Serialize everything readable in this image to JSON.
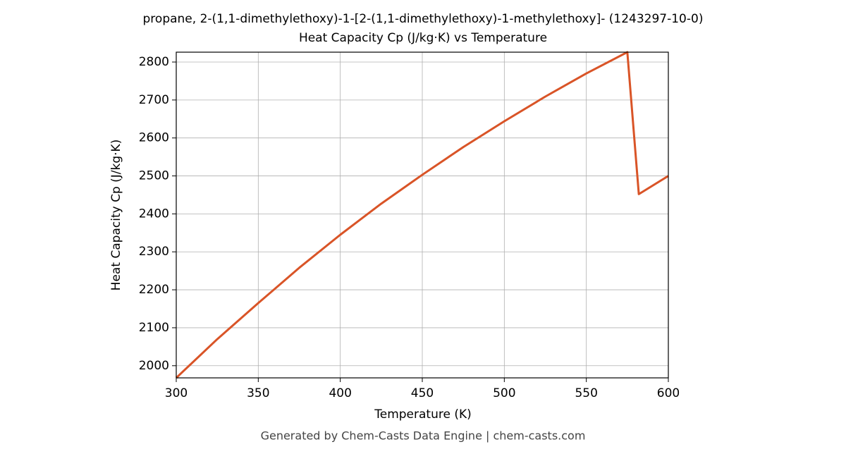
{
  "chart_data": {
    "type": "line",
    "title": "propane, 2-(1,1-dimethylethoxy)-1-[2-(1,1-dimethylethoxy)-1-methylethoxy]- (1243297-10-0)",
    "subtitle": "Heat Capacity Cp (J/kg·K) vs Temperature",
    "x_label": "Temperature (K)",
    "y_label": "Heat Capacity Cp (J/kg·K)",
    "footer": "Generated by Chem-Casts Data Engine | chem-casts.com",
    "x": [
      300,
      325,
      350,
      375,
      400,
      425,
      450,
      475,
      500,
      525,
      550,
      575,
      582,
      600
    ],
    "series": [
      {
        "name": "Cp",
        "color": "#d95427",
        "values": [
          1968,
          2070,
          2165,
          2258,
          2345,
          2427,
          2503,
          2576,
          2644,
          2709,
          2770,
          2826,
          2452,
          2500
        ]
      }
    ],
    "xlim": [
      300,
      600
    ],
    "xticks": [
      300,
      350,
      400,
      450,
      500,
      550,
      600
    ],
    "ylim": [
      1968,
      2826
    ],
    "yticks": [
      2000,
      2100,
      2200,
      2300,
      2400,
      2500,
      2600,
      2700,
      2800
    ],
    "grid": true
  }
}
